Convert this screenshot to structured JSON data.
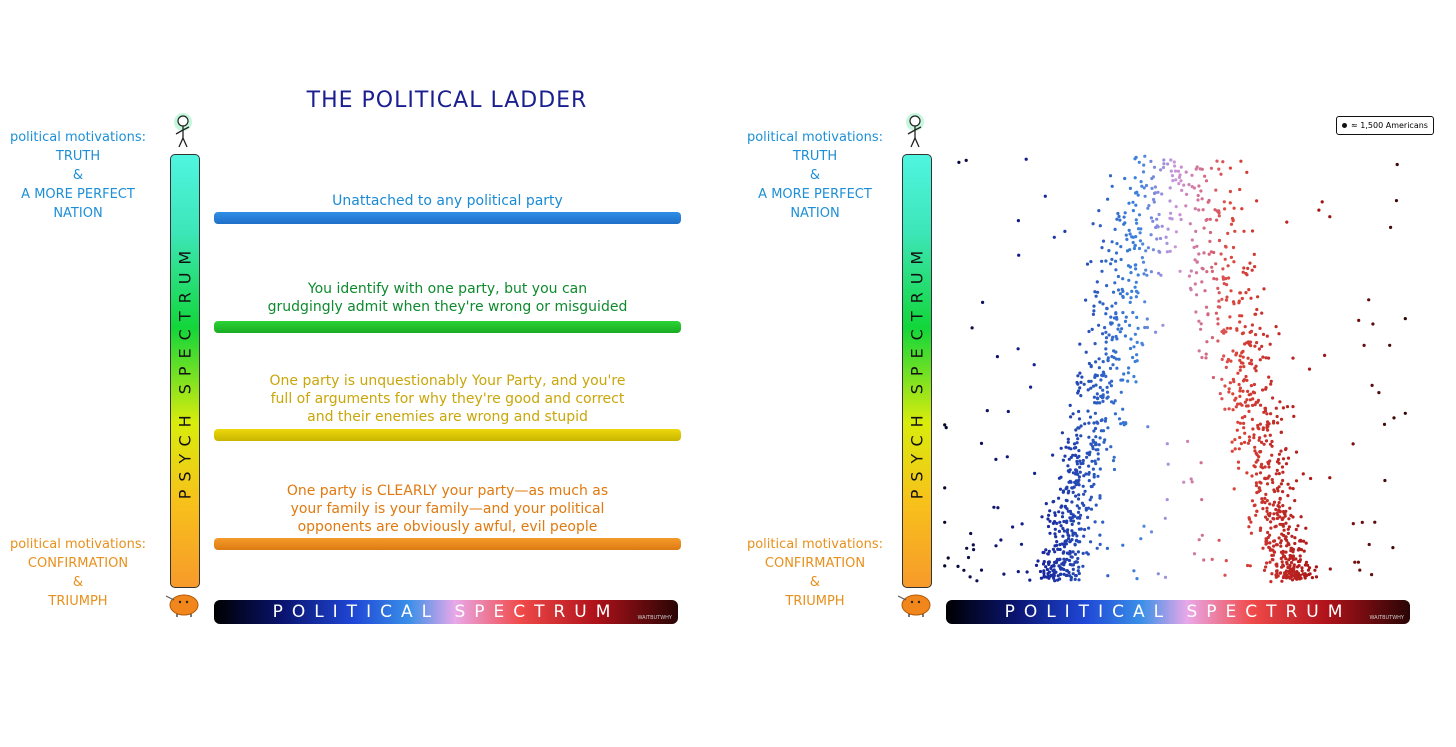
{
  "title": "THE POLITICAL LADDER",
  "motivations_top": [
    "political motivations:",
    "TRUTH",
    "&",
    "A MORE PERFECT",
    "NATION"
  ],
  "motivations_bottom": [
    "political motivations:",
    "CONFIRMATION",
    "&",
    "TRIUMPH"
  ],
  "psych_spectrum_label": "PSYCH SPECTRUM",
  "political_spectrum_label": "POLITICAL SPECTRUM",
  "watermark": "WAITBUTWHY",
  "rungs": [
    {
      "lines": [
        "Unattached to any political party"
      ],
      "color": "#1a8ad4",
      "bar": [
        "#2f8fe6",
        "#1f6fc8"
      ]
    },
    {
      "lines": [
        "You identify with one party, but you can",
        "grudgingly admit when they're wrong or misguided"
      ],
      "color": "#0e8a2e",
      "bar": [
        "#2cd436",
        "#18ac22"
      ]
    },
    {
      "lines": [
        "One party is unquestionably Your Party, and you're",
        "full of arguments for why they're good and correct",
        "and their enemies are wrong and stupid"
      ],
      "color": "#c9a60a",
      "bar": [
        "#ecd80c",
        "#c8b400"
      ]
    },
    {
      "lines": [
        "One party is CLEARLY your party—as much as",
        "your family is your family—and your political",
        "opponents are obviously awful, evil people"
      ],
      "color": "#e07a10",
      "bar": [
        "#f59a2a",
        "#dc7a12"
      ]
    }
  ],
  "legend": "≈ 1,500 Americans",
  "colors": {
    "title": "#1a1f8f",
    "top": "#1d8fd6",
    "bottom": "#e8901c"
  }
}
